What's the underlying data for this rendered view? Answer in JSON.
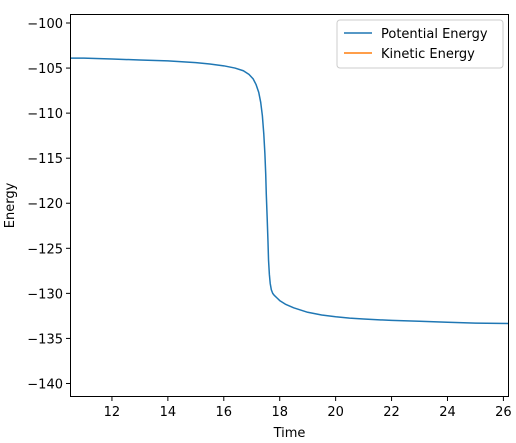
{
  "chart_data": {
    "type": "line",
    "title": "",
    "xlabel": "Time",
    "ylabel": "Energy",
    "xlim": [
      10.5,
      26.2
    ],
    "ylim": [
      -141.5,
      -99.0
    ],
    "xticks": [
      12,
      14,
      16,
      18,
      20,
      22,
      24,
      26
    ],
    "yticks": [
      -100,
      -105,
      -110,
      -115,
      -120,
      -125,
      -130,
      -135,
      -140
    ],
    "xtick_labels": [
      "12",
      "14",
      "16",
      "18",
      "20",
      "22",
      "24",
      "26"
    ],
    "ytick_labels": [
      "−100",
      "−105",
      "−110",
      "−115",
      "−120",
      "−125",
      "−130",
      "−135",
      "−140"
    ],
    "grid": false,
    "legend_position": "top-right",
    "series": [
      {
        "name": "Potential Energy",
        "color": "#1f77b4",
        "x": [
          10.5,
          11,
          12,
          13,
          14,
          15,
          15.5,
          16,
          16.4,
          16.7,
          16.9,
          17.05,
          17.15,
          17.25,
          17.32,
          17.38,
          17.43,
          17.47,
          17.5,
          17.52,
          17.55,
          17.58,
          17.6,
          17.63,
          17.66,
          17.7,
          17.75,
          17.8,
          17.9,
          18,
          18.2,
          18.5,
          19,
          19.5,
          20,
          20.5,
          21,
          22,
          23,
          24,
          25,
          26.2
        ],
        "y": [
          -103.9,
          -103.9,
          -104.0,
          -104.1,
          -104.2,
          -104.4,
          -104.55,
          -104.75,
          -105.0,
          -105.3,
          -105.7,
          -106.2,
          -106.8,
          -107.7,
          -108.8,
          -110.3,
          -112.3,
          -114.5,
          -116.8,
          -119.0,
          -121.5,
          -124.2,
          -126.3,
          -127.9,
          -128.9,
          -129.6,
          -130.0,
          -130.2,
          -130.5,
          -130.8,
          -131.2,
          -131.6,
          -132.1,
          -132.4,
          -132.6,
          -132.75,
          -132.85,
          -133.0,
          -133.1,
          -133.2,
          -133.3,
          -133.35
        ]
      },
      {
        "name": "Kinetic Energy",
        "color": "#ff7f0e",
        "x": [],
        "y": []
      }
    ]
  }
}
